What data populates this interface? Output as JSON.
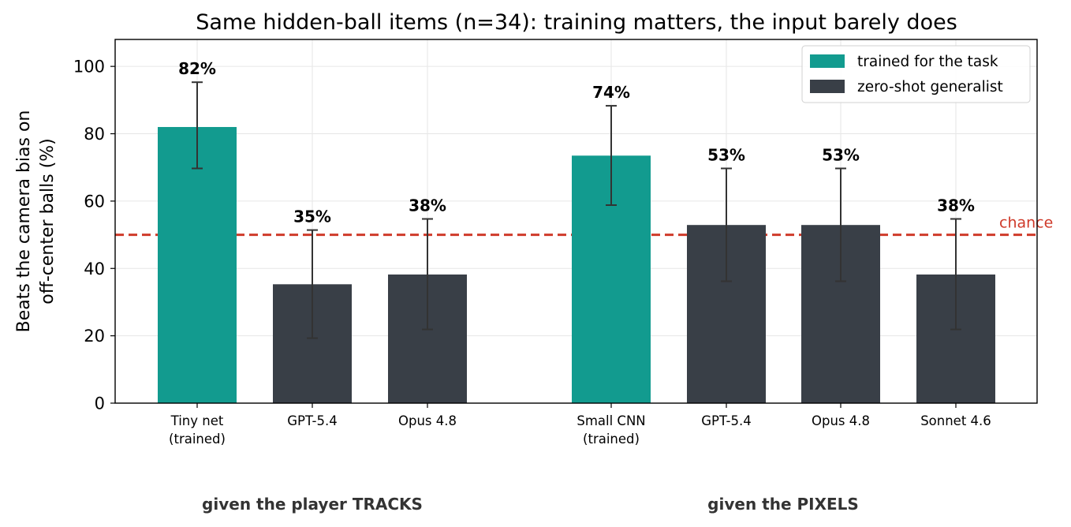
{
  "chart_data": {
    "type": "bar",
    "title": "Same hidden-ball items (n=34): training matters, the input barely does",
    "ylabel_lines": [
      "Beats the camera bias on",
      "off-center balls (%)"
    ],
    "ylim": [
      0,
      108
    ],
    "yticks": [
      0,
      20,
      40,
      60,
      80,
      100
    ],
    "grid": true,
    "legend_placement": "top-right",
    "legend": [
      {
        "label": "trained for the task",
        "color": "#129b8f"
      },
      {
        "label": "zero-shot generalist",
        "color": "#393f47"
      }
    ],
    "reference_line": {
      "value": 50,
      "label": "chance",
      "color": "#cf3a2a"
    },
    "groups": [
      {
        "label": "given the player TRACKS"
      },
      {
        "label": "given the PIXELS"
      }
    ],
    "bars": [
      {
        "category_lines": [
          "Tiny net",
          "(trained)"
        ],
        "group": 0,
        "kind": "trained",
        "value": 82,
        "err_low": 69.7,
        "err_high": 95.3,
        "data_label": "82%"
      },
      {
        "category_lines": [
          "GPT-5.4"
        ],
        "group": 0,
        "kind": "zero-shot",
        "value": 35.3,
        "err_low": 19.3,
        "err_high": 51.4,
        "data_label": "35%"
      },
      {
        "category_lines": [
          "Opus 4.8"
        ],
        "group": 0,
        "kind": "zero-shot",
        "value": 38.2,
        "err_low": 21.9,
        "err_high": 54.7,
        "data_label": "38%"
      },
      {
        "category_lines": [
          "Small CNN",
          "(trained)"
        ],
        "group": 1,
        "kind": "trained",
        "value": 73.5,
        "err_low": 58.8,
        "err_high": 88.3,
        "data_label": "74%"
      },
      {
        "category_lines": [
          "GPT-5.4"
        ],
        "group": 1,
        "kind": "zero-shot",
        "value": 52.9,
        "err_low": 36.2,
        "err_high": 69.7,
        "data_label": "53%"
      },
      {
        "category_lines": [
          "Opus 4.8"
        ],
        "group": 1,
        "kind": "zero-shot",
        "value": 52.9,
        "err_low": 36.2,
        "err_high": 69.7,
        "data_label": "53%"
      },
      {
        "category_lines": [
          "Sonnet 4.6"
        ],
        "group": 1,
        "kind": "zero-shot",
        "value": 38.2,
        "err_low": 21.9,
        "err_high": 54.7,
        "data_label": "38%"
      }
    ]
  }
}
